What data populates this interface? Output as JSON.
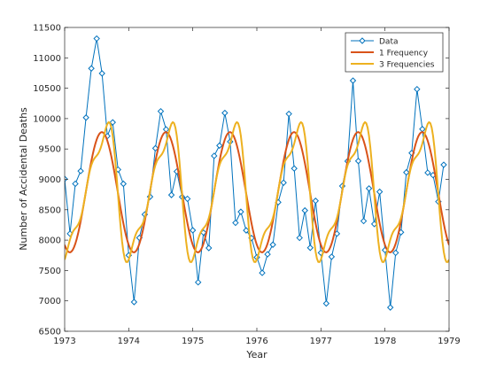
{
  "chart_data": {
    "type": "line",
    "xlabel": "Year",
    "ylabel": "Number of Accidental Deaths",
    "xlim": [
      1973,
      1979
    ],
    "ylim": [
      6500,
      11500
    ],
    "x_ticks": [
      1973,
      1974,
      1975,
      1976,
      1977,
      1978,
      1979
    ],
    "y_ticks": [
      6500,
      7000,
      7500,
      8000,
      8500,
      9000,
      9500,
      10000,
      10500,
      11000,
      11500
    ],
    "grid": false,
    "legend_position": "top-right",
    "series": [
      {
        "name": "Data",
        "color": "#0072bd",
        "marker": "diamond",
        "x_start": 1973,
        "x_step": 0.083333,
        "values": [
          9007,
          8106,
          8928,
          9137,
          10017,
          10826,
          11317,
          10744,
          9713,
          9938,
          9161,
          8927,
          7750,
          6981,
          8038,
          8422,
          8714,
          9512,
          10120,
          9823,
          8743,
          9129,
          8710,
          8680,
          8162,
          7306,
          8124,
          7870,
          9387,
          9556,
          10093,
          9620,
          8285,
          8466,
          8160,
          8034,
          7717,
          7461,
          7767,
          7925,
          8623,
          8945,
          10078,
          9179,
          8037,
          8488,
          7874,
          8647,
          7792,
          6957,
          7726,
          8106,
          8890,
          9299,
          10625,
          9302,
          8314,
          8850,
          8265,
          8796,
          7836,
          6892,
          7791,
          8129,
          9115,
          9434,
          10484,
          9827,
          9110,
          9070,
          8633,
          9240
        ]
      },
      {
        "name": "1 Frequency",
        "color": "#d95319",
        "fit": {
          "mean": 8788,
          "amplitude": 990,
          "phase_years": 0.33
        }
      },
      {
        "name": "3 Frequencies",
        "color": "#edb120",
        "fit": {
          "mean": 8788,
          "harmonics": [
            [
              990,
              0.33
            ],
            [
              300,
              0.08
            ],
            [
              200,
              0.33
            ]
          ]
        }
      }
    ]
  }
}
